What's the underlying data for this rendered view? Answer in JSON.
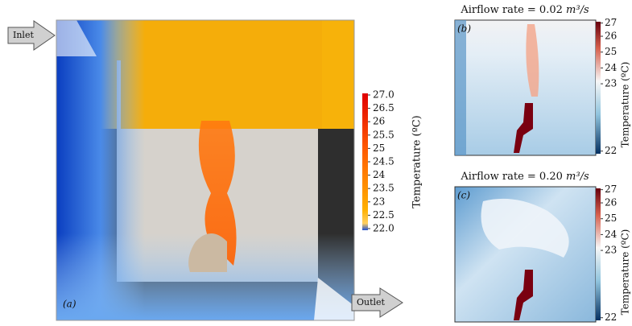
{
  "panel_a": {
    "tag": "(a)",
    "inlet": "Inlet",
    "outlet": "Outlet",
    "colorbar": {
      "label": "Temperature (ºC)",
      "ticks": [
        "27.0",
        "26.5",
        "26",
        "25.5",
        "25",
        "24.5",
        "24",
        "23.5",
        "23",
        "22.5",
        "22.0"
      ]
    }
  },
  "panel_b": {
    "tag": "(b)",
    "title": "Airflow rate = 0.02",
    "unit": "m³/s",
    "colorbar": {
      "label": "Temperature (ºC)",
      "ticks": [
        "27",
        "26",
        "25",
        "24",
        "23",
        "22"
      ]
    }
  },
  "panel_c": {
    "tag": "(c)",
    "title": "Airflow rate = 0.20",
    "unit": "m³/s",
    "colorbar": {
      "label": "Temperature (ºC)",
      "ticks": [
        "27",
        "26",
        "25",
        "24",
        "23",
        "22"
      ]
    }
  }
}
